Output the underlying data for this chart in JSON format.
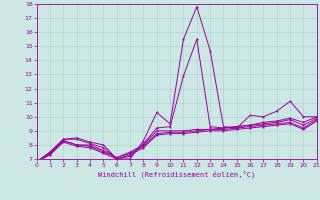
{
  "xlabel": "Windchill (Refroidissement éolien,°C)",
  "bg_color": "#cce8e4",
  "line_color": "#990099",
  "grid_color": "#aacccc",
  "xmin": 0,
  "xmax": 21,
  "ymin": 7,
  "ymax": 18,
  "lines": [
    [
      0,
      6.8,
      1,
      7.5,
      2,
      8.4,
      3,
      8.5,
      4,
      8.2,
      5,
      8.0,
      6,
      7.0,
      7,
      7.0,
      8,
      8.3,
      9,
      10.3,
      10,
      9.5,
      11,
      15.5,
      12,
      17.8,
      13,
      14.7,
      14,
      9.3,
      15,
      9.2,
      16,
      10.1,
      17,
      10.0,
      18,
      10.4,
      19,
      11.1,
      20,
      10.0,
      21,
      10.0
    ],
    [
      0,
      6.8,
      1,
      7.5,
      2,
      8.4,
      3,
      8.4,
      4,
      8.1,
      5,
      7.8,
      6,
      7.0,
      7,
      7.2,
      8,
      8.1,
      9,
      9.2,
      10,
      9.3,
      11,
      12.9,
      12,
      15.5,
      13,
      9.3,
      14,
      9.2,
      15,
      9.3,
      16,
      9.4,
      17,
      9.6,
      18,
      9.7,
      19,
      9.9,
      20,
      9.6,
      21,
      10.0
    ],
    [
      0,
      6.8,
      1,
      7.4,
      2,
      8.3,
      3,
      8.0,
      4,
      8.0,
      5,
      7.6,
      6,
      7.1,
      7,
      7.5,
      8,
      8.0,
      9,
      9.0,
      10,
      9.0,
      11,
      9.0,
      12,
      9.1,
      13,
      9.1,
      14,
      9.2,
      15,
      9.3,
      16,
      9.4,
      17,
      9.5,
      18,
      9.6,
      19,
      9.8,
      20,
      9.4,
      21,
      9.9
    ],
    [
      0,
      6.8,
      1,
      7.4,
      2,
      8.3,
      3,
      8.0,
      4,
      7.9,
      5,
      7.5,
      6,
      7.1,
      7,
      7.4,
      8,
      7.9,
      9,
      8.8,
      10,
      8.9,
      11,
      8.9,
      12,
      9.0,
      13,
      9.1,
      14,
      9.1,
      15,
      9.2,
      16,
      9.3,
      17,
      9.4,
      18,
      9.5,
      19,
      9.6,
      20,
      9.2,
      21,
      9.8
    ],
    [
      0,
      6.8,
      1,
      7.3,
      2,
      8.2,
      3,
      7.9,
      4,
      7.8,
      5,
      7.4,
      6,
      7.0,
      7,
      7.3,
      8,
      7.8,
      9,
      8.7,
      10,
      8.8,
      11,
      8.8,
      12,
      8.9,
      13,
      9.0,
      14,
      9.0,
      15,
      9.1,
      16,
      9.2,
      17,
      9.3,
      18,
      9.4,
      19,
      9.5,
      20,
      9.1,
      21,
      9.7
    ]
  ]
}
